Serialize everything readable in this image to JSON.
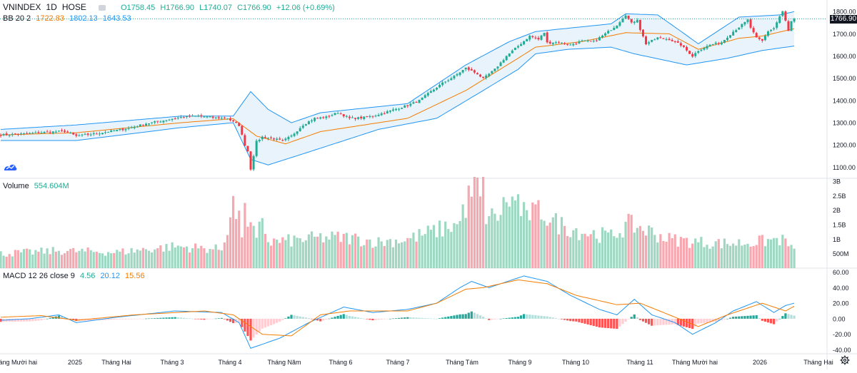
{
  "header": {
    "symbol": "VNINDEX",
    "interval": "1D",
    "exchange": "HOSE",
    "open": "O1758.45",
    "high": "H1766.90",
    "low": "L1740.07",
    "close": "C1766.90",
    "change": "+12.06 (+0.69%)"
  },
  "bb_legend": {
    "name": "BB 20 2",
    "mid": "1722.83",
    "upper": "1802.13",
    "lower": "1643.53"
  },
  "volume_legend": {
    "name": "Volume",
    "value": "554.604M"
  },
  "macd_legend": {
    "name": "MACD 12 26 close 9",
    "hist": "4.56",
    "macd": "20.12",
    "signal": "15.56"
  },
  "last_price_label": "1766.90",
  "colors": {
    "up": "#22ab94",
    "down": "#f23645",
    "upVol": "#9fd8c2",
    "downVol": "#f7a7b0",
    "bbBand": "#2196f3",
    "bbFill": "#e9f3fb",
    "bbMid": "#f57c00",
    "macd": "#2196f3",
    "signal": "#f57c00"
  },
  "chart_data": [
    {
      "type": "candlestick",
      "title": "VNINDEX 1D HOSE",
      "ylim": [
        1050,
        1820
      ],
      "yticks": [
        "1800.00",
        "1700.00",
        "1600.00",
        "1500.00",
        "1400.00",
        "1300.00",
        "1200.00",
        "1100.00"
      ],
      "ytick_values": [
        1800,
        1700,
        1600,
        1500,
        1400,
        1300,
        1200,
        1100
      ],
      "xticks": [
        "Tháng Mười hai",
        "2025",
        "Tháng Hai",
        "Tháng 3",
        "Tháng 4",
        "Tháng Năm",
        "Tháng 6",
        "Tháng 7",
        "Tháng Tám",
        "Tháng 9",
        "Tháng 10",
        "Tháng 11",
        "Tháng Mười hai",
        "2026",
        "Tháng Hai"
      ],
      "close_anchors": [
        [
          0,
          1245
        ],
        [
          8,
          1250
        ],
        [
          16,
          1258
        ],
        [
          22,
          1262
        ],
        [
          26,
          1240
        ],
        [
          32,
          1250
        ],
        [
          38,
          1262
        ],
        [
          44,
          1275
        ],
        [
          50,
          1296
        ],
        [
          56,
          1310
        ],
        [
          62,
          1325
        ],
        [
          68,
          1330
        ],
        [
          74,
          1322
        ],
        [
          78,
          1320
        ],
        [
          82,
          1288
        ],
        [
          84,
          1200
        ],
        [
          85,
          1172
        ],
        [
          86,
          1092
        ],
        [
          88,
          1215
        ],
        [
          90,
          1236
        ],
        [
          94,
          1228
        ],
        [
          97,
          1218
        ],
        [
          100,
          1240
        ],
        [
          104,
          1290
        ],
        [
          108,
          1320
        ],
        [
          112,
          1325
        ],
        [
          116,
          1346
        ],
        [
          120,
          1320
        ],
        [
          124,
          1322
        ],
        [
          128,
          1330
        ],
        [
          132,
          1345
        ],
        [
          136,
          1362
        ],
        [
          140,
          1378
        ],
        [
          144,
          1400
        ],
        [
          148,
          1440
        ],
        [
          152,
          1478
        ],
        [
          156,
          1508
        ],
        [
          160,
          1546
        ],
        [
          164,
          1520
        ],
        [
          166,
          1498
        ],
        [
          170,
          1540
        ],
        [
          174,
          1600
        ],
        [
          178,
          1645
        ],
        [
          182,
          1690
        ],
        [
          185,
          1675
        ],
        [
          187,
          1705
        ],
        [
          188,
          1660
        ],
        [
          192,
          1662
        ],
        [
          196,
          1650
        ],
        [
          200,
          1668
        ],
        [
          204,
          1665
        ],
        [
          208,
          1700
        ],
        [
          212,
          1740
        ],
        [
          215,
          1786
        ],
        [
          217,
          1748
        ],
        [
          219,
          1765
        ],
        [
          220,
          1720
        ],
        [
          222,
          1655
        ],
        [
          226,
          1682
        ],
        [
          230,
          1675
        ],
        [
          234,
          1650
        ],
        [
          238,
          1600
        ],
        [
          240,
          1625
        ],
        [
          244,
          1650
        ],
        [
          248,
          1662
        ],
        [
          252,
          1710
        ],
        [
          255,
          1740
        ],
        [
          257,
          1762
        ],
        [
          258,
          1728
        ],
        [
          260,
          1680
        ],
        [
          262,
          1668
        ],
        [
          264,
          1712
        ],
        [
          266,
          1725
        ],
        [
          268,
          1778
        ],
        [
          269,
          1800
        ],
        [
          270,
          1758
        ],
        [
          271,
          1712
        ],
        [
          272,
          1755
        ],
        [
          273,
          1767
        ]
      ],
      "bb_upper": [
        [
          0,
          1270
        ],
        [
          26,
          1290
        ],
        [
          62,
          1330
        ],
        [
          80,
          1330
        ],
        [
          86,
          1440
        ],
        [
          92,
          1360
        ],
        [
          100,
          1300
        ],
        [
          110,
          1345
        ],
        [
          140,
          1386
        ],
        [
          160,
          1560
        ],
        [
          175,
          1665
        ],
        [
          184,
          1710
        ],
        [
          210,
          1745
        ],
        [
          215,
          1790
        ],
        [
          226,
          1785
        ],
        [
          232,
          1730
        ],
        [
          240,
          1655
        ],
        [
          254,
          1775
        ],
        [
          268,
          1785
        ],
        [
          273,
          1800
        ]
      ],
      "bb_lower": [
        [
          0,
          1220
        ],
        [
          26,
          1220
        ],
        [
          62,
          1278
        ],
        [
          80,
          1300
        ],
        [
          86,
          1135
        ],
        [
          92,
          1110
        ],
        [
          104,
          1160
        ],
        [
          130,
          1270
        ],
        [
          150,
          1320
        ],
        [
          166,
          1445
        ],
        [
          178,
          1540
        ],
        [
          184,
          1610
        ],
        [
          195,
          1630
        ],
        [
          210,
          1640
        ],
        [
          218,
          1610
        ],
        [
          236,
          1560
        ],
        [
          250,
          1590
        ],
        [
          262,
          1625
        ],
        [
          273,
          1645
        ]
      ],
      "bb_mid": [
        [
          0,
          1245
        ],
        [
          26,
          1255
        ],
        [
          62,
          1300
        ],
        [
          80,
          1318
        ],
        [
          88,
          1240
        ],
        [
          98,
          1205
        ],
        [
          110,
          1260
        ],
        [
          140,
          1320
        ],
        [
          160,
          1445
        ],
        [
          178,
          1590
        ],
        [
          184,
          1640
        ],
        [
          200,
          1665
        ],
        [
          215,
          1705
        ],
        [
          230,
          1700
        ],
        [
          240,
          1630
        ],
        [
          254,
          1680
        ],
        [
          262,
          1690
        ],
        [
          273,
          1723
        ]
      ]
    },
    {
      "type": "bar",
      "title": "Volume",
      "ylim": [
        0,
        3.1
      ],
      "yticks": [
        "3B",
        "2.5B",
        "2B",
        "1.5B",
        "1B",
        "500M"
      ],
      "ytick_values": [
        3,
        2.5,
        2,
        1.5,
        1,
        0.5
      ],
      "unit": "billions",
      "volume_anchors": [
        [
          0,
          0.5
        ],
        [
          20,
          0.6
        ],
        [
          40,
          0.55
        ],
        [
          60,
          0.75
        ],
        [
          76,
          0.65
        ],
        [
          80,
          2.2
        ],
        [
          82,
          1.6
        ],
        [
          84,
          0.9
        ],
        [
          86,
          1.5
        ],
        [
          88,
          0.9
        ],
        [
          90,
          1.8
        ],
        [
          92,
          0.9
        ],
        [
          100,
          0.95
        ],
        [
          110,
          1.05
        ],
        [
          120,
          1.05
        ],
        [
          130,
          0.9
        ],
        [
          140,
          1.0
        ],
        [
          150,
          1.3
        ],
        [
          156,
          1.5
        ],
        [
          160,
          1.45
        ],
        [
          164,
          2.85
        ],
        [
          166,
          1.9
        ],
        [
          170,
          1.7
        ],
        [
          175,
          2.4
        ],
        [
          180,
          1.9
        ],
        [
          186,
          2.0
        ],
        [
          190,
          1.6
        ],
        [
          200,
          1.25
        ],
        [
          210,
          1.1
        ],
        [
          216,
          1.5
        ],
        [
          220,
          1.4
        ],
        [
          230,
          1.0
        ],
        [
          240,
          0.9
        ],
        [
          250,
          0.85
        ],
        [
          260,
          0.9
        ],
        [
          268,
          1.0
        ],
        [
          271,
          0.85
        ],
        [
          273,
          0.55
        ]
      ],
      "highlights": [
        [
          84,
          2.25
        ],
        [
          159,
          2.2
        ],
        [
          161,
          2.85
        ],
        [
          163,
          3.15
        ],
        [
          166,
          3.15
        ],
        [
          178,
          2.55
        ],
        [
          181,
          2.0
        ],
        [
          184,
          2.2
        ]
      ]
    },
    {
      "type": "line+histogram",
      "title": "MACD 12 26 close 9",
      "ylim": [
        -45,
        65
      ],
      "yticks": [
        "60.00",
        "40.00",
        "20.00",
        "0.00",
        "-20.00",
        "-40.00"
      ],
      "ytick_values": [
        60,
        40,
        20,
        0,
        -20,
        -40
      ],
      "macd_anchors": [
        [
          0,
          -2
        ],
        [
          10,
          0
        ],
        [
          20,
          5
        ],
        [
          26,
          -5
        ],
        [
          40,
          2
        ],
        [
          60,
          10
        ],
        [
          76,
          8
        ],
        [
          82,
          -5
        ],
        [
          86,
          -38
        ],
        [
          96,
          -25
        ],
        [
          106,
          -5
        ],
        [
          118,
          15
        ],
        [
          128,
          8
        ],
        [
          140,
          12
        ],
        [
          150,
          20
        ],
        [
          158,
          40
        ],
        [
          162,
          48
        ],
        [
          168,
          40
        ],
        [
          180,
          55
        ],
        [
          188,
          48
        ],
        [
          196,
          30
        ],
        [
          206,
          12
        ],
        [
          212,
          5
        ],
        [
          218,
          25
        ],
        [
          224,
          5
        ],
        [
          232,
          -5
        ],
        [
          238,
          -20
        ],
        [
          246,
          -5
        ],
        [
          252,
          10
        ],
        [
          260,
          22
        ],
        [
          266,
          8
        ],
        [
          270,
          17
        ],
        [
          273,
          20
        ]
      ],
      "signal_anchors": [
        [
          0,
          2
        ],
        [
          14,
          4
        ],
        [
          26,
          -2
        ],
        [
          46,
          5
        ],
        [
          70,
          10
        ],
        [
          80,
          5
        ],
        [
          90,
          -20
        ],
        [
          100,
          -22
        ],
        [
          110,
          5
        ],
        [
          120,
          10
        ],
        [
          140,
          10
        ],
        [
          150,
          20
        ],
        [
          160,
          38
        ],
        [
          166,
          40
        ],
        [
          178,
          50
        ],
        [
          188,
          45
        ],
        [
          198,
          30
        ],
        [
          212,
          18
        ],
        [
          220,
          20
        ],
        [
          230,
          5
        ],
        [
          240,
          -10
        ],
        [
          250,
          5
        ],
        [
          262,
          20
        ],
        [
          270,
          10
        ],
        [
          273,
          16
        ]
      ]
    }
  ]
}
